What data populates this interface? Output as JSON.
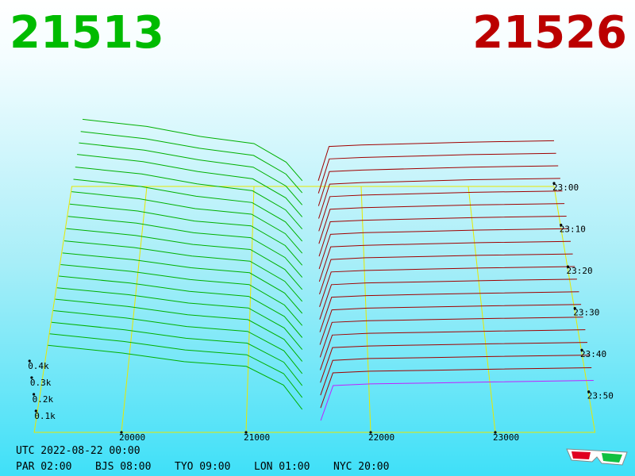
{
  "chart_data": {
    "type": "depth",
    "bid_price": 21513,
    "bid_color": "#00bb00",
    "ask_price": 21526,
    "ask_color": "#bb0000",
    "xlim": [
      19300,
      23800
    ],
    "xticks": [
      20000,
      21000,
      22000,
      23000
    ],
    "ylim": [
      0,
      500
    ],
    "yticks": [
      {
        "value": 100,
        "label": "0.1k"
      },
      {
        "value": 200,
        "label": "0.2k"
      },
      {
        "value": 300,
        "label": "0.3k"
      },
      {
        "value": 400,
        "label": "0.4k"
      }
    ],
    "tlim": [
      0,
      59
    ],
    "tticks": [
      {
        "value": 0,
        "label": "23:00"
      },
      {
        "value": 10,
        "label": "23:10"
      },
      {
        "value": 20,
        "label": "23:20"
      },
      {
        "value": 30,
        "label": "23:30"
      },
      {
        "value": 40,
        "label": "23:40"
      },
      {
        "value": 50,
        "label": "23:50"
      }
    ],
    "times": [
      0,
      3,
      6,
      9,
      12,
      15,
      18,
      21,
      24,
      27,
      30,
      33,
      36,
      39,
      42,
      45,
      48,
      51,
      54,
      57
    ],
    "grid_color": "#e8e800",
    "latest_color": "#c020ff",
    "bids": {
      "color": "#00b000",
      "prices": [
        19400,
        20000,
        20500,
        21000,
        21300,
        21450
      ],
      "depths": [
        [
          470,
          420,
          350,
          300,
          170,
          40
        ],
        [
          468,
          418,
          352,
          302,
          172,
          42
        ],
        [
          472,
          422,
          355,
          305,
          175,
          45
        ],
        [
          475,
          425,
          358,
          308,
          178,
          48
        ],
        [
          470,
          423,
          356,
          310,
          180,
          50
        ],
        [
          468,
          420,
          354,
          312,
          182,
          52
        ],
        [
          465,
          418,
          352,
          315,
          185,
          55
        ],
        [
          462,
          416,
          350,
          318,
          188,
          58
        ],
        [
          460,
          415,
          352,
          320,
          190,
          60
        ],
        [
          458,
          414,
          355,
          322,
          192,
          62
        ],
        [
          456,
          413,
          358,
          325,
          195,
          65
        ],
        [
          455,
          412,
          360,
          328,
          198,
          68
        ],
        [
          457,
          414,
          362,
          330,
          200,
          70
        ],
        [
          460,
          416,
          364,
          332,
          205,
          72
        ],
        [
          462,
          418,
          366,
          335,
          210,
          75
        ],
        [
          465,
          420,
          368,
          338,
          215,
          78
        ],
        [
          468,
          422,
          370,
          340,
          220,
          80
        ],
        [
          470,
          424,
          372,
          342,
          225,
          82
        ],
        [
          472,
          426,
          374,
          345,
          230,
          85
        ],
        [
          475,
          428,
          376,
          348,
          235,
          88
        ]
      ]
    },
    "asks": {
      "color": "#a00000",
      "prices": [
        21600,
        21700,
        22000,
        22500,
        23000,
        23800
      ],
      "depths": [
        [
          40,
          280,
          290,
          300,
          310,
          320
        ],
        [
          39,
          278,
          288,
          298,
          308,
          317
        ],
        [
          38,
          275,
          285,
          295,
          305,
          314
        ],
        [
          37,
          272,
          283,
          292,
          302,
          311
        ],
        [
          36,
          270,
          280,
          290,
          299,
          308
        ],
        [
          35,
          267,
          278,
          287,
          296,
          305
        ],
        [
          34,
          265,
          275,
          284,
          293,
          302
        ],
        [
          33,
          262,
          273,
          281,
          290,
          299
        ],
        [
          32,
          260,
          270,
          279,
          287,
          296
        ],
        [
          31,
          257,
          268,
          276,
          284,
          293
        ],
        [
          30,
          255,
          265,
          273,
          281,
          290
        ],
        [
          29,
          252,
          263,
          270,
          278,
          287
        ],
        [
          28,
          250,
          260,
          268,
          275,
          284
        ],
        [
          27,
          247,
          258,
          265,
          272,
          281
        ],
        [
          26,
          245,
          255,
          262,
          269,
          278
        ],
        [
          25,
          242,
          253,
          259,
          266,
          275
        ],
        [
          24,
          240,
          250,
          257,
          263,
          272
        ],
        [
          23,
          237,
          248,
          254,
          260,
          269
        ],
        [
          22,
          235,
          245,
          251,
          257,
          266
        ],
        [
          21,
          232,
          242,
          248,
          254,
          263
        ]
      ]
    },
    "footer": {
      "utc": "UTC 2022-08-22 00:00",
      "zones": [
        "PAR 02:00",
        "BJS 08:00",
        "TYO 09:00",
        "LON 01:00",
        "NYC 20:00"
      ]
    }
  }
}
